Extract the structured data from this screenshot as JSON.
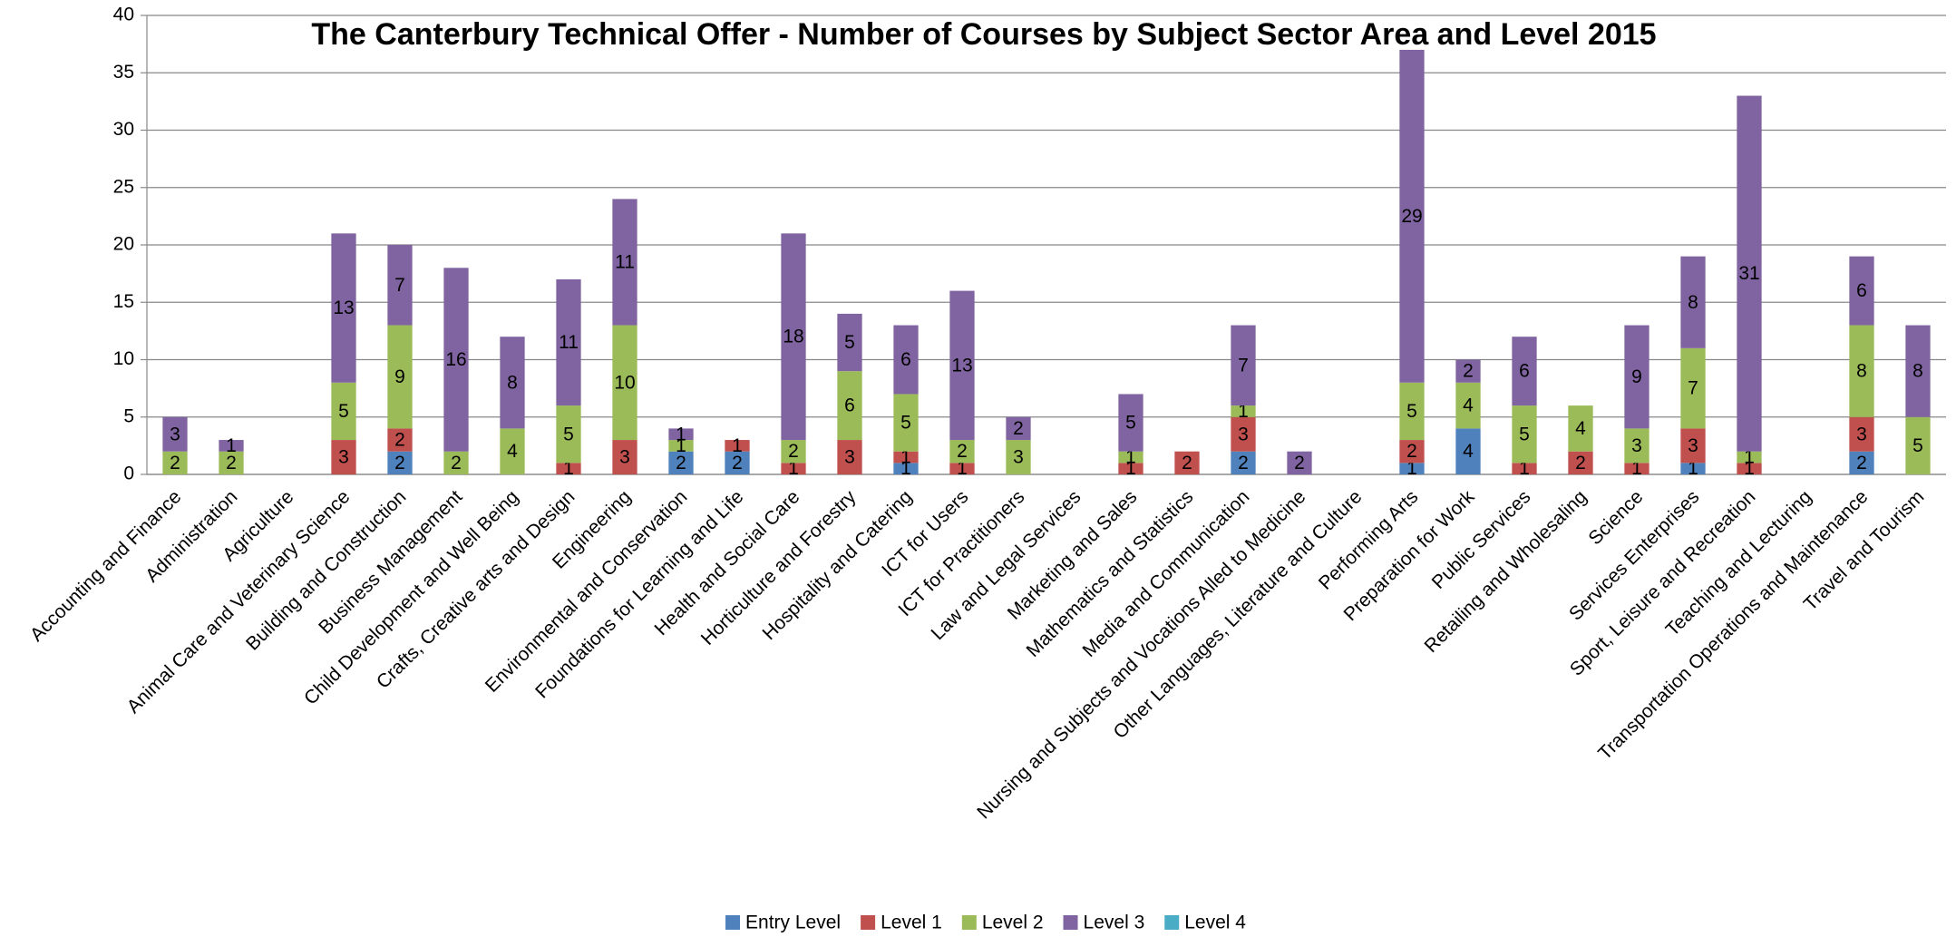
{
  "chart_data": {
    "type": "stacked_bar",
    "title": "The Canterbury Technical Offer - Number of Courses by Subject Sector Area and Level 2015",
    "categories": [
      "Accounting and Finance",
      "Administration",
      "Agriculture",
      "Animal Care and Veterinary Science",
      "Building and Construction",
      "Business Management",
      "Child Development and Well Being",
      "Crafts, Creative arts and Design",
      "Engineering",
      "Environmental and Conservation",
      "Foundations for Learning and Life",
      "Health and Social Care",
      "Horticulture and Forestry",
      "Hospitality and Catering",
      "ICT for Users",
      "ICT for Practitioners",
      "Law and Legal Services",
      "Marketing and Sales",
      "Mathematics and Statistics",
      "Media and Communication",
      "Nursing and Subjects and Vocations Alled to Medicine",
      "Other Languages, Literature and Culture",
      "Performing Arts",
      "Preparation for Work",
      "Public Services",
      "Retailing and Wholesaling",
      "Science",
      "Services Enterprises",
      "Sport, Leisure and Recreation",
      "Teaching and Lecturing",
      "Transportation Operations and Maintenance",
      "Travel and Tourism"
    ],
    "series": [
      {
        "name": "Entry Level",
        "color": "#4f81bd",
        "values": [
          null,
          null,
          null,
          null,
          2,
          null,
          null,
          null,
          null,
          2,
          2,
          null,
          null,
          1,
          null,
          null,
          null,
          null,
          null,
          2,
          null,
          null,
          1,
          4,
          null,
          null,
          null,
          1,
          null,
          null,
          2,
          null
        ]
      },
      {
        "name": "Level 1",
        "color": "#c0504d",
        "values": [
          null,
          null,
          null,
          3,
          2,
          null,
          null,
          1,
          3,
          null,
          1,
          1,
          3,
          1,
          1,
          null,
          null,
          1,
          2,
          3,
          null,
          null,
          2,
          null,
          1,
          2,
          1,
          3,
          1,
          null,
          3,
          null
        ]
      },
      {
        "name": "Level 2",
        "color": "#9bbb59",
        "values": [
          2,
          2,
          null,
          5,
          9,
          2,
          4,
          5,
          10,
          1,
          null,
          2,
          6,
          5,
          2,
          3,
          null,
          1,
          null,
          1,
          null,
          null,
          5,
          4,
          5,
          4,
          3,
          7,
          1,
          null,
          8,
          5
        ]
      },
      {
        "name": "Level 3",
        "color": "#8064a2",
        "values": [
          3,
          1,
          null,
          13,
          7,
          16,
          8,
          11,
          11,
          1,
          null,
          18,
          5,
          6,
          13,
          2,
          null,
          5,
          null,
          7,
          2,
          null,
          29,
          2,
          6,
          null,
          9,
          8,
          31,
          null,
          6,
          8
        ]
      },
      {
        "name": "Level 4",
        "color": "#4bacc6",
        "values": [
          null,
          null,
          null,
          null,
          null,
          null,
          null,
          null,
          null,
          null,
          null,
          null,
          null,
          null,
          null,
          null,
          null,
          null,
          null,
          null,
          null,
          null,
          null,
          null,
          null,
          null,
          null,
          null,
          null,
          null,
          null,
          null
        ]
      }
    ],
    "ylim": [
      0,
      40
    ],
    "yticks": [
      0,
      5,
      10,
      15,
      20,
      25,
      30,
      35,
      40
    ],
    "grid": true,
    "legend": "bottom"
  }
}
